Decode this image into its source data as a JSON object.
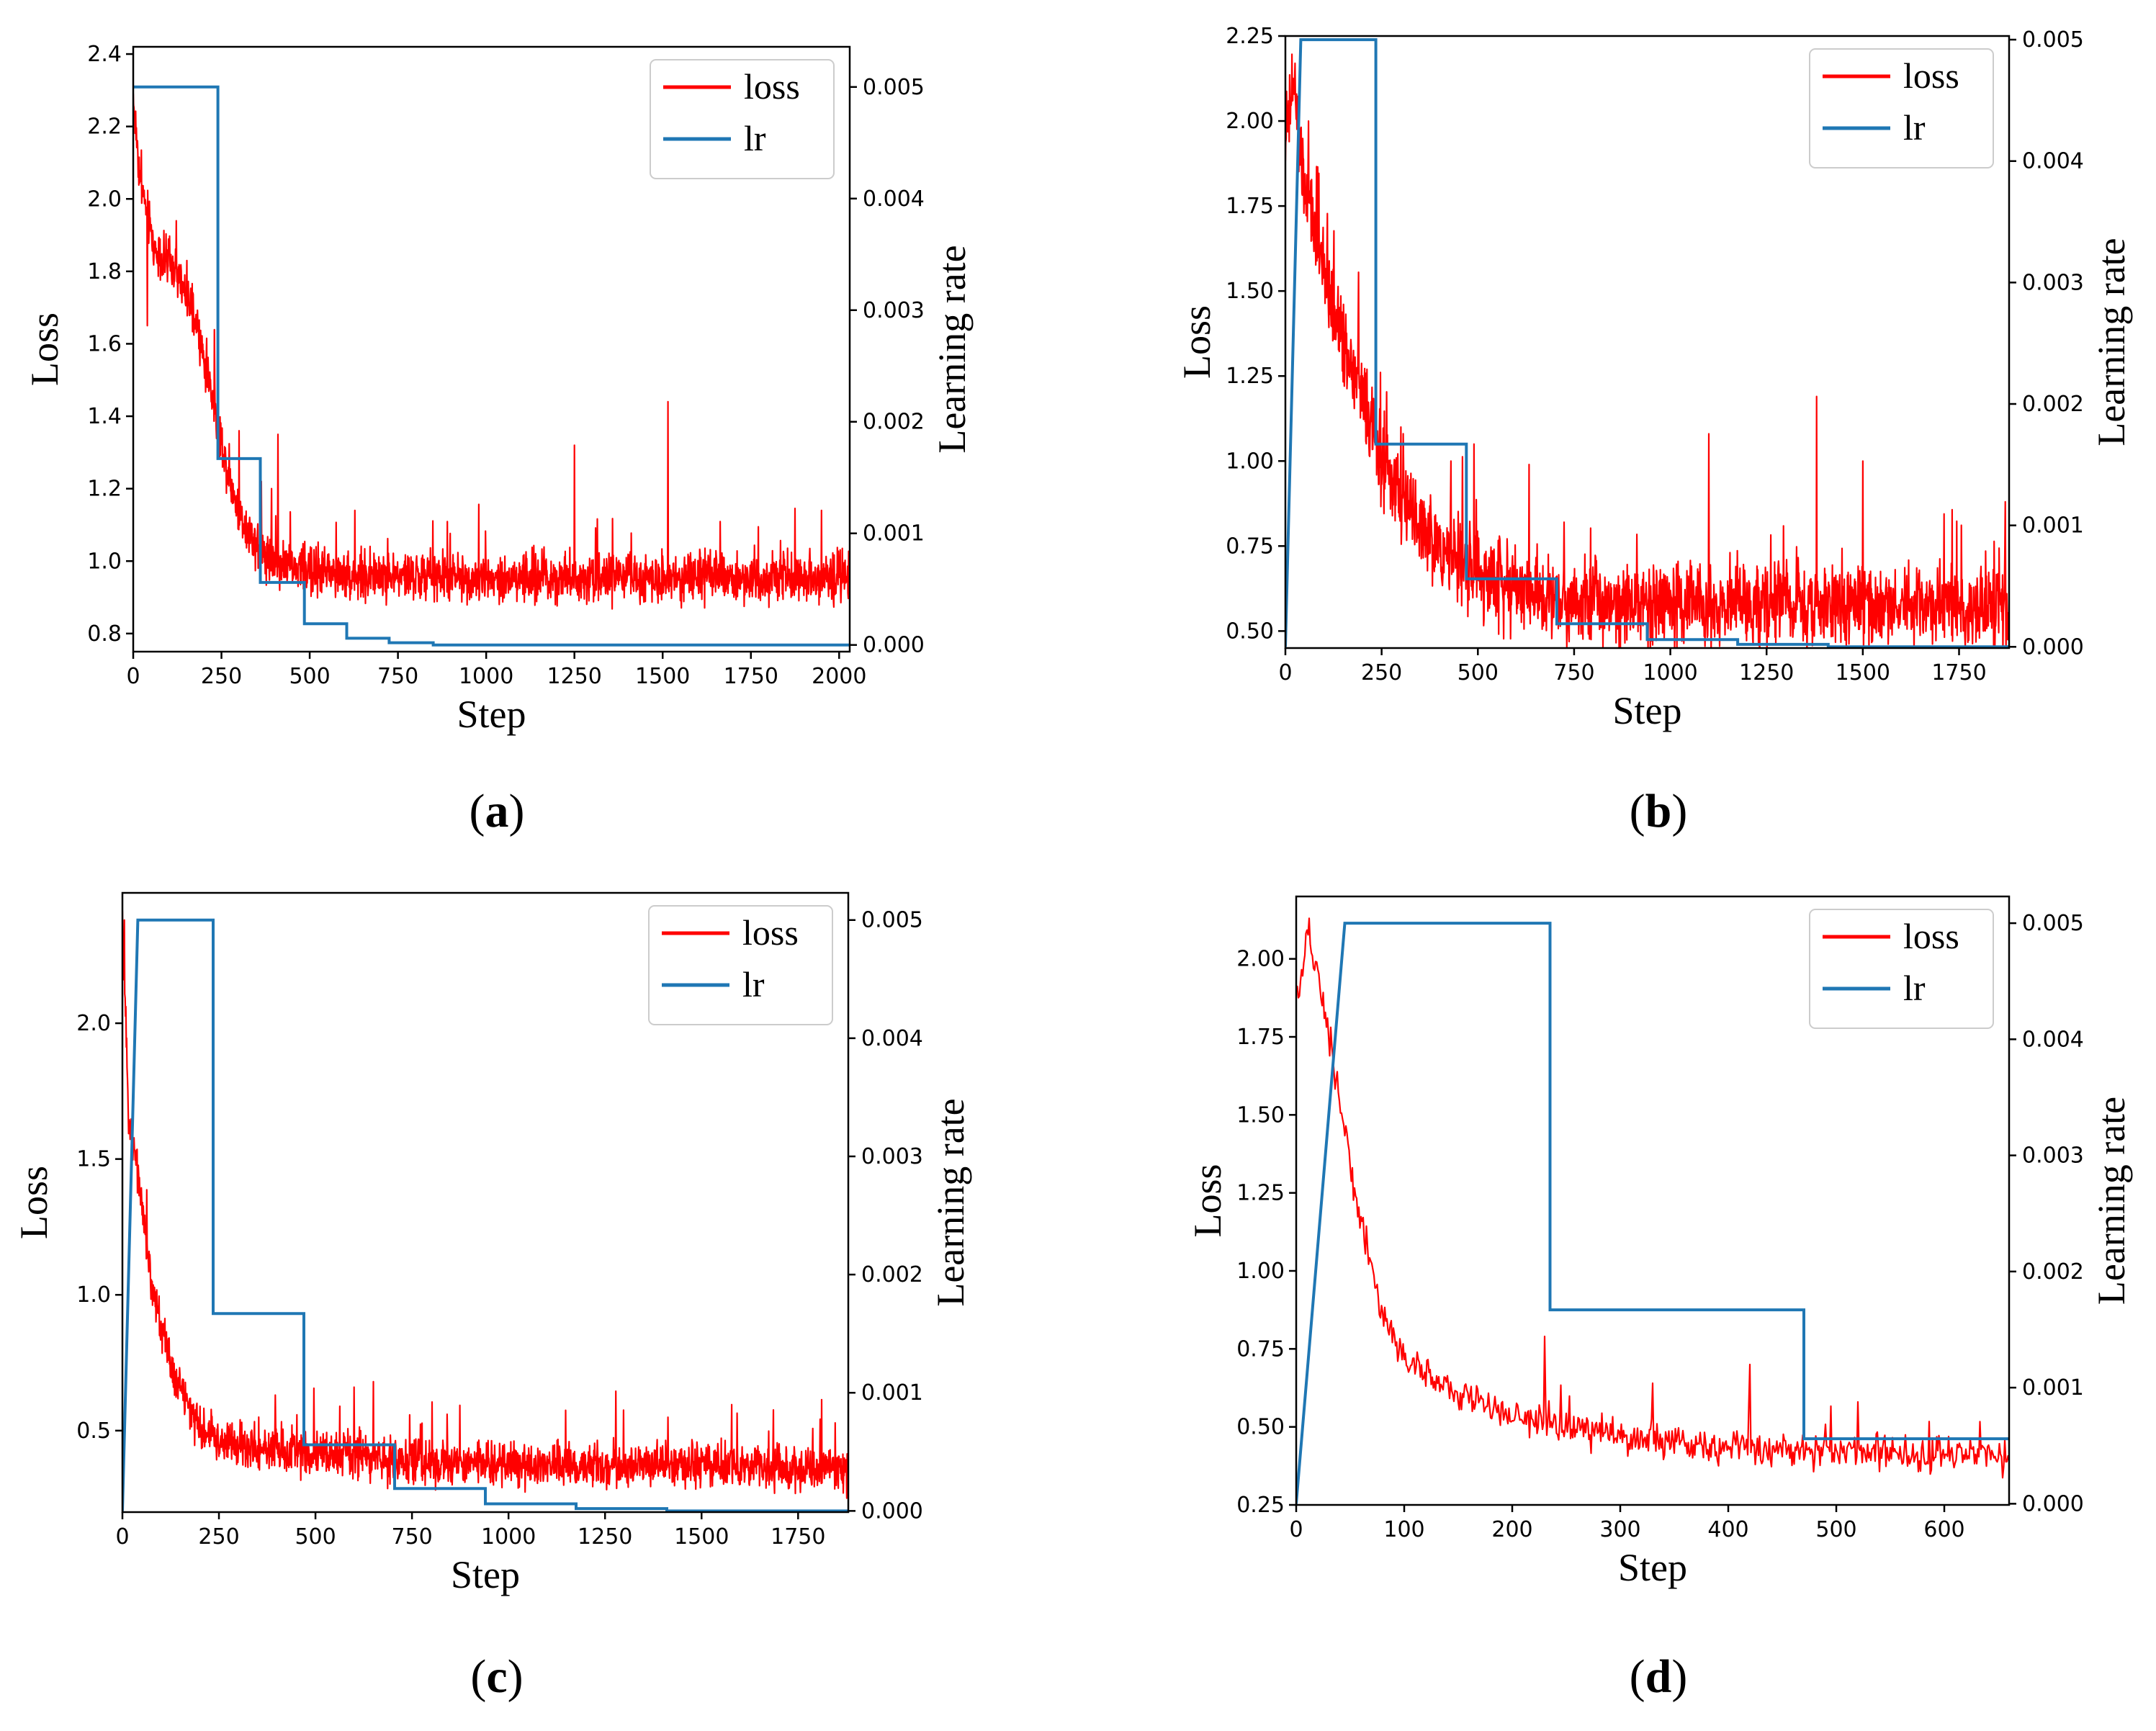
{
  "figure": {
    "captions": [
      "(a)",
      "(b)",
      "(c)",
      "(d)"
    ],
    "caption_letters": [
      "a",
      "b",
      "c",
      "d"
    ]
  },
  "colors": {
    "loss": "#ff0000",
    "lr": "#1f77b4"
  },
  "chart_data": [
    {
      "type": "line",
      "id": "a",
      "xlabel": "Step",
      "ylabel": "Loss",
      "y2label": "Learning rate",
      "xlim": [
        0,
        2030
      ],
      "ylim": [
        0.75,
        2.42
      ],
      "y2lim": [
        -6e-05,
        0.00536
      ],
      "xticks": [
        0,
        250,
        500,
        750,
        1000,
        1250,
        1500,
        1750,
        2000
      ],
      "yticks": [
        0.8,
        1.0,
        1.2,
        1.4,
        1.6,
        1.8,
        2.0,
        2.2,
        2.4
      ],
      "ytick_labels": [
        "0.8",
        "1.0",
        "1.2",
        "1.4",
        "1.6",
        "1.8",
        "2.0",
        "2.2",
        "2.4"
      ],
      "y2ticks": [
        0.0,
        0.001,
        0.002,
        0.003,
        0.004,
        0.005
      ],
      "y2tick_labels": [
        "0.000",
        "0.001",
        "0.002",
        "0.003",
        "0.004",
        "0.005"
      ],
      "legend": {
        "position": "top-right",
        "entries": [
          "loss",
          "lr"
        ]
      },
      "series": [
        {
          "name": "loss",
          "x_end": 2030,
          "keypoints": [
            [
              0,
              2.28
            ],
            [
              20,
              2.05
            ],
            [
              60,
              1.86
            ],
            [
              120,
              1.8
            ],
            [
              170,
              1.68
            ],
            [
              220,
              1.48
            ],
            [
              260,
              1.28
            ],
            [
              300,
              1.13
            ],
            [
              360,
              1.03
            ],
            [
              450,
              0.98
            ],
            [
              600,
              0.96
            ],
            [
              1000,
              0.955
            ],
            [
              2030,
              0.955
            ]
          ],
          "noise": 0.05,
          "spikes": [
            [
              40,
              1.65
            ],
            [
              240,
              1.36
            ],
            [
              300,
              1.36
            ],
            [
              410,
              1.35
            ],
            [
              1250,
              1.32
            ],
            [
              1515,
              1.44
            ],
            [
              1950,
              1.14
            ]
          ]
        },
        {
          "name": "lr",
          "axis": "y2",
          "points": [
            [
              0,
              0.005
            ],
            [
              240,
              0.005
            ],
            [
              240,
              0.00167
            ],
            [
              360,
              0.00167
            ],
            [
              360,
              0.00056
            ],
            [
              485,
              0.00056
            ],
            [
              485,
              0.00019
            ],
            [
              605,
              0.00019
            ],
            [
              605,
              6e-05
            ],
            [
              725,
              6e-05
            ],
            [
              725,
              2e-05
            ],
            [
              850,
              2e-05
            ],
            [
              850,
              0.0
            ],
            [
              2030,
              0.0
            ]
          ]
        }
      ]
    },
    {
      "type": "line",
      "id": "b",
      "xlabel": "Step",
      "ylabel": "Loss",
      "y2label": "Learning rate",
      "xlim": [
        0,
        1880
      ],
      "ylim": [
        0.45,
        2.25
      ],
      "y2lim": [
        -1e-05,
        0.00503
      ],
      "xticks": [
        0,
        250,
        500,
        750,
        1000,
        1250,
        1500,
        1750
      ],
      "yticks": [
        0.5,
        0.75,
        1.0,
        1.25,
        1.5,
        1.75,
        2.0,
        2.25
      ],
      "ytick_labels": [
        "0.50",
        "0.75",
        "1.00",
        "1.25",
        "1.50",
        "1.75",
        "2.00",
        "2.25"
      ],
      "y2ticks": [
        0.0,
        0.001,
        0.002,
        0.003,
        0.004,
        0.005
      ],
      "y2tick_labels": [
        "0.000",
        "0.001",
        "0.002",
        "0.003",
        "0.004",
        "0.005"
      ],
      "legend": {
        "position": "top-right",
        "entries": [
          "loss",
          "lr"
        ]
      },
      "series": [
        {
          "name": "loss",
          "x_end": 1880,
          "keypoints": [
            [
              0,
              1.95
            ],
            [
              20,
              2.1
            ],
            [
              50,
              1.8
            ],
            [
              100,
              1.55
            ],
            [
              150,
              1.35
            ],
            [
              200,
              1.2
            ],
            [
              250,
              1.0
            ],
            [
              300,
              0.88
            ],
            [
              400,
              0.74
            ],
            [
              500,
              0.66
            ],
            [
              700,
              0.6
            ],
            [
              1000,
              0.58
            ],
            [
              1880,
              0.57
            ]
          ],
          "noise": 0.09,
          "spikes": [
            [
              25,
              2.17
            ],
            [
              60,
              2.0
            ],
            [
              300,
              1.1
            ],
            [
              430,
              1.0
            ],
            [
              490,
              1.05
            ],
            [
              1100,
              1.08
            ],
            [
              1380,
              1.19
            ],
            [
              1500,
              1.0
            ],
            [
              1870,
              0.88
            ]
          ]
        },
        {
          "name": "lr",
          "axis": "y2",
          "points": [
            [
              0,
              0.0
            ],
            [
              40,
              0.005
            ],
            [
              235,
              0.005
            ],
            [
              235,
              0.00167
            ],
            [
              470,
              0.00167
            ],
            [
              470,
              0.00056
            ],
            [
              705,
              0.00056
            ],
            [
              705,
              0.00019
            ],
            [
              940,
              0.00019
            ],
            [
              940,
              6e-05
            ],
            [
              1175,
              6e-05
            ],
            [
              1175,
              2e-05
            ],
            [
              1410,
              2e-05
            ],
            [
              1410,
              0.0
            ],
            [
              1880,
              0.0
            ]
          ]
        }
      ]
    },
    {
      "type": "line",
      "id": "c",
      "xlabel": "Step",
      "ylabel": "Loss",
      "y2label": "Learning rate",
      "xlim": [
        0,
        1880
      ],
      "ylim": [
        0.2,
        2.48
      ],
      "y2lim": [
        -1e-05,
        0.00523
      ],
      "xticks": [
        0,
        250,
        500,
        750,
        1000,
        1250,
        1500,
        1750
      ],
      "yticks": [
        0.5,
        1.0,
        1.5,
        2.0
      ],
      "ytick_labels": [
        "0.5",
        "1.0",
        "1.5",
        "2.0"
      ],
      "y2ticks": [
        0.0,
        0.001,
        0.002,
        0.003,
        0.004,
        0.005
      ],
      "y2tick_labels": [
        "0.000",
        "0.001",
        "0.002",
        "0.003",
        "0.004",
        "0.005"
      ],
      "legend": {
        "position": "top-right",
        "entries": [
          "loss",
          "lr"
        ]
      },
      "series": [
        {
          "name": "loss",
          "x_end": 1880,
          "keypoints": [
            [
              0,
              2.36
            ],
            [
              15,
              1.7
            ],
            [
              40,
              1.45
            ],
            [
              80,
              1.0
            ],
            [
              130,
              0.72
            ],
            [
              200,
              0.5
            ],
            [
              300,
              0.44
            ],
            [
              500,
              0.42
            ],
            [
              800,
              0.38
            ],
            [
              1880,
              0.36
            ]
          ],
          "noise": 0.06,
          "spikes": [
            [
              5,
              2.38
            ],
            [
              90,
              0.95
            ],
            [
              650,
              0.68
            ],
            [
              600,
              0.66
            ]
          ]
        },
        {
          "name": "lr",
          "axis": "y2",
          "points": [
            [
              0,
              0.0
            ],
            [
              40,
              0.005
            ],
            [
              235,
              0.005
            ],
            [
              235,
              0.00167
            ],
            [
              470,
              0.00167
            ],
            [
              470,
              0.00056
            ],
            [
              705,
              0.00056
            ],
            [
              705,
              0.00019
            ],
            [
              940,
              0.00019
            ],
            [
              940,
              6e-05
            ],
            [
              1175,
              6e-05
            ],
            [
              1175,
              2e-05
            ],
            [
              1410,
              2e-05
            ],
            [
              1410,
              0.0
            ],
            [
              1880,
              0.0
            ]
          ]
        }
      ]
    },
    {
      "type": "line",
      "id": "d",
      "xlabel": "Step",
      "ylabel": "Loss",
      "y2label": "Learning rate",
      "xlim": [
        0,
        660
      ],
      "ylim": [
        0.25,
        2.2
      ],
      "y2lim": [
        -1e-05,
        0.00523
      ],
      "xticks": [
        0,
        100,
        200,
        300,
        400,
        500,
        600
      ],
      "yticks": [
        0.25,
        0.5,
        0.75,
        1.0,
        1.25,
        1.5,
        1.75,
        2.0
      ],
      "ytick_labels": [
        "0.25",
        "0.50",
        "0.75",
        "1.00",
        "1.25",
        "1.50",
        "1.75",
        "2.00"
      ],
      "y2ticks": [
        0.0,
        0.001,
        0.002,
        0.003,
        0.004,
        0.005
      ],
      "y2tick_labels": [
        "0.000",
        "0.001",
        "0.002",
        "0.003",
        "0.004",
        "0.005"
      ],
      "legend": {
        "position": "top-right",
        "entries": [
          "loss",
          "lr"
        ]
      },
      "series": [
        {
          "name": "loss",
          "x_end": 660,
          "keypoints": [
            [
              0,
              1.85
            ],
            [
              10,
              2.05
            ],
            [
              20,
              1.95
            ],
            [
              40,
              1.55
            ],
            [
              60,
              1.15
            ],
            [
              80,
              0.85
            ],
            [
              100,
              0.72
            ],
            [
              150,
              0.6
            ],
            [
              200,
              0.53
            ],
            [
              300,
              0.47
            ],
            [
              400,
              0.43
            ],
            [
              500,
              0.42
            ],
            [
              660,
              0.4
            ]
          ],
          "noise": 0.04,
          "spikes": [
            [
              12,
              2.13
            ],
            [
              230,
              0.79
            ],
            [
              330,
              0.64
            ],
            [
              420,
              0.7
            ],
            [
              520,
              0.58
            ]
          ]
        },
        {
          "name": "lr",
          "axis": "y2",
          "points": [
            [
              0,
              0.0
            ],
            [
              45,
              0.005
            ],
            [
              235,
              0.005
            ],
            [
              235,
              0.00167
            ],
            [
              470,
              0.00167
            ],
            [
              470,
              0.00056
            ],
            [
              660,
              0.00056
            ]
          ]
        }
      ]
    }
  ]
}
